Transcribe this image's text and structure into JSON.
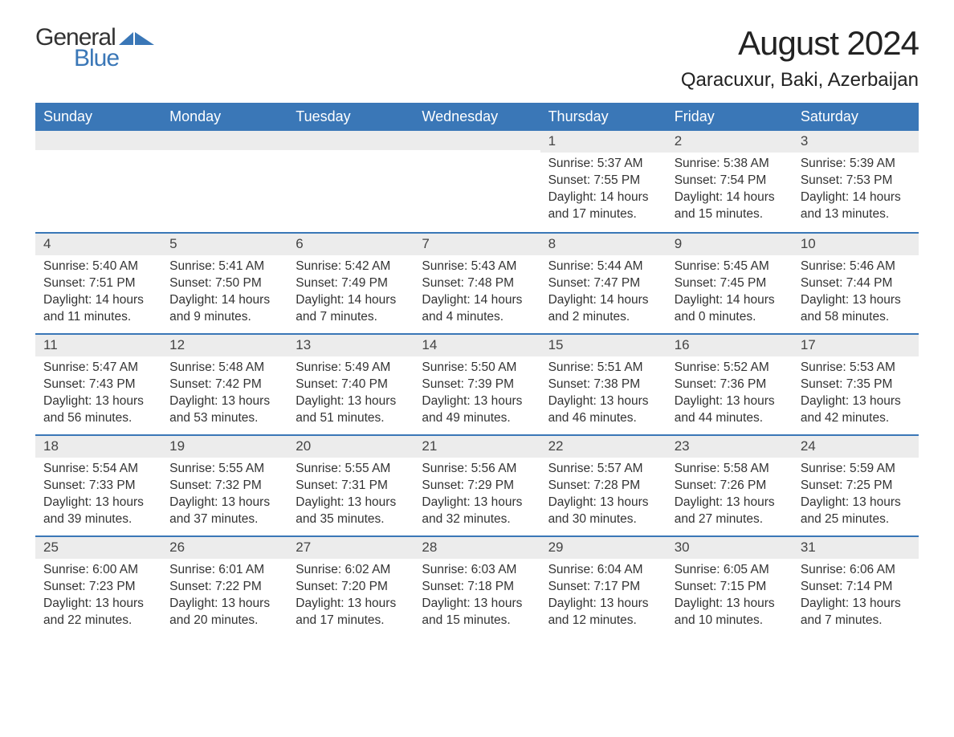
{
  "logo": {
    "text_general": "General",
    "text_blue": "Blue"
  },
  "title": "August 2024",
  "subtitle": "Qaracuxur, Baki, Azerbaijan",
  "colors": {
    "header_bg": "#3a77b7",
    "header_text": "#ffffff",
    "daynum_bg": "#ececec",
    "body_text": "#333333",
    "rule": "#3a77b7",
    "logo_blue": "#3a77b7",
    "page_bg": "#ffffff"
  },
  "typography": {
    "title_fontsize": 42,
    "subtitle_fontsize": 24,
    "dayheader_fontsize": 18,
    "daynum_fontsize": 17,
    "cell_fontsize": 15.5,
    "font_family": "Arial"
  },
  "day_names": [
    "Sunday",
    "Monday",
    "Tuesday",
    "Wednesday",
    "Thursday",
    "Friday",
    "Saturday"
  ],
  "weeks": [
    [
      {
        "empty": true
      },
      {
        "empty": true
      },
      {
        "empty": true
      },
      {
        "empty": true
      },
      {
        "day": "1",
        "sunrise": "Sunrise: 5:37 AM",
        "sunset": "Sunset: 7:55 PM",
        "daylight": "Daylight: 14 hours and 17 minutes."
      },
      {
        "day": "2",
        "sunrise": "Sunrise: 5:38 AM",
        "sunset": "Sunset: 7:54 PM",
        "daylight": "Daylight: 14 hours and 15 minutes."
      },
      {
        "day": "3",
        "sunrise": "Sunrise: 5:39 AM",
        "sunset": "Sunset: 7:53 PM",
        "daylight": "Daylight: 14 hours and 13 minutes."
      }
    ],
    [
      {
        "day": "4",
        "sunrise": "Sunrise: 5:40 AM",
        "sunset": "Sunset: 7:51 PM",
        "daylight": "Daylight: 14 hours and 11 minutes."
      },
      {
        "day": "5",
        "sunrise": "Sunrise: 5:41 AM",
        "sunset": "Sunset: 7:50 PM",
        "daylight": "Daylight: 14 hours and 9 minutes."
      },
      {
        "day": "6",
        "sunrise": "Sunrise: 5:42 AM",
        "sunset": "Sunset: 7:49 PM",
        "daylight": "Daylight: 14 hours and 7 minutes."
      },
      {
        "day": "7",
        "sunrise": "Sunrise: 5:43 AM",
        "sunset": "Sunset: 7:48 PM",
        "daylight": "Daylight: 14 hours and 4 minutes."
      },
      {
        "day": "8",
        "sunrise": "Sunrise: 5:44 AM",
        "sunset": "Sunset: 7:47 PM",
        "daylight": "Daylight: 14 hours and 2 minutes."
      },
      {
        "day": "9",
        "sunrise": "Sunrise: 5:45 AM",
        "sunset": "Sunset: 7:45 PM",
        "daylight": "Daylight: 14 hours and 0 minutes."
      },
      {
        "day": "10",
        "sunrise": "Sunrise: 5:46 AM",
        "sunset": "Sunset: 7:44 PM",
        "daylight": "Daylight: 13 hours and 58 minutes."
      }
    ],
    [
      {
        "day": "11",
        "sunrise": "Sunrise: 5:47 AM",
        "sunset": "Sunset: 7:43 PM",
        "daylight": "Daylight: 13 hours and 56 minutes."
      },
      {
        "day": "12",
        "sunrise": "Sunrise: 5:48 AM",
        "sunset": "Sunset: 7:42 PM",
        "daylight": "Daylight: 13 hours and 53 minutes."
      },
      {
        "day": "13",
        "sunrise": "Sunrise: 5:49 AM",
        "sunset": "Sunset: 7:40 PM",
        "daylight": "Daylight: 13 hours and 51 minutes."
      },
      {
        "day": "14",
        "sunrise": "Sunrise: 5:50 AM",
        "sunset": "Sunset: 7:39 PM",
        "daylight": "Daylight: 13 hours and 49 minutes."
      },
      {
        "day": "15",
        "sunrise": "Sunrise: 5:51 AM",
        "sunset": "Sunset: 7:38 PM",
        "daylight": "Daylight: 13 hours and 46 minutes."
      },
      {
        "day": "16",
        "sunrise": "Sunrise: 5:52 AM",
        "sunset": "Sunset: 7:36 PM",
        "daylight": "Daylight: 13 hours and 44 minutes."
      },
      {
        "day": "17",
        "sunrise": "Sunrise: 5:53 AM",
        "sunset": "Sunset: 7:35 PM",
        "daylight": "Daylight: 13 hours and 42 minutes."
      }
    ],
    [
      {
        "day": "18",
        "sunrise": "Sunrise: 5:54 AM",
        "sunset": "Sunset: 7:33 PM",
        "daylight": "Daylight: 13 hours and 39 minutes."
      },
      {
        "day": "19",
        "sunrise": "Sunrise: 5:55 AM",
        "sunset": "Sunset: 7:32 PM",
        "daylight": "Daylight: 13 hours and 37 minutes."
      },
      {
        "day": "20",
        "sunrise": "Sunrise: 5:55 AM",
        "sunset": "Sunset: 7:31 PM",
        "daylight": "Daylight: 13 hours and 35 minutes."
      },
      {
        "day": "21",
        "sunrise": "Sunrise: 5:56 AM",
        "sunset": "Sunset: 7:29 PM",
        "daylight": "Daylight: 13 hours and 32 minutes."
      },
      {
        "day": "22",
        "sunrise": "Sunrise: 5:57 AM",
        "sunset": "Sunset: 7:28 PM",
        "daylight": "Daylight: 13 hours and 30 minutes."
      },
      {
        "day": "23",
        "sunrise": "Sunrise: 5:58 AM",
        "sunset": "Sunset: 7:26 PM",
        "daylight": "Daylight: 13 hours and 27 minutes."
      },
      {
        "day": "24",
        "sunrise": "Sunrise: 5:59 AM",
        "sunset": "Sunset: 7:25 PM",
        "daylight": "Daylight: 13 hours and 25 minutes."
      }
    ],
    [
      {
        "day": "25",
        "sunrise": "Sunrise: 6:00 AM",
        "sunset": "Sunset: 7:23 PM",
        "daylight": "Daylight: 13 hours and 22 minutes."
      },
      {
        "day": "26",
        "sunrise": "Sunrise: 6:01 AM",
        "sunset": "Sunset: 7:22 PM",
        "daylight": "Daylight: 13 hours and 20 minutes."
      },
      {
        "day": "27",
        "sunrise": "Sunrise: 6:02 AM",
        "sunset": "Sunset: 7:20 PM",
        "daylight": "Daylight: 13 hours and 17 minutes."
      },
      {
        "day": "28",
        "sunrise": "Sunrise: 6:03 AM",
        "sunset": "Sunset: 7:18 PM",
        "daylight": "Daylight: 13 hours and 15 minutes."
      },
      {
        "day": "29",
        "sunrise": "Sunrise: 6:04 AM",
        "sunset": "Sunset: 7:17 PM",
        "daylight": "Daylight: 13 hours and 12 minutes."
      },
      {
        "day": "30",
        "sunrise": "Sunrise: 6:05 AM",
        "sunset": "Sunset: 7:15 PM",
        "daylight": "Daylight: 13 hours and 10 minutes."
      },
      {
        "day": "31",
        "sunrise": "Sunrise: 6:06 AM",
        "sunset": "Sunset: 7:14 PM",
        "daylight": "Daylight: 13 hours and 7 minutes."
      }
    ]
  ]
}
